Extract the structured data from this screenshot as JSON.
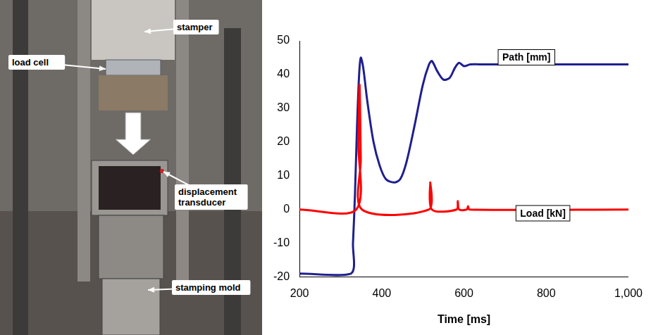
{
  "chart_data": {
    "type": "line",
    "x_label": "Time [ms]",
    "xlim": [
      200,
      1000
    ],
    "xticks": [
      200,
      400,
      600,
      800,
      1000
    ],
    "ylim": [
      -20,
      50
    ],
    "yticks": [
      -20,
      -10,
      0,
      10,
      20,
      30,
      40,
      50
    ],
    "grid": false,
    "series": [
      {
        "name": "Path [mm]",
        "color": "#1f1f8f",
        "x": [
          200,
          325,
          330,
          335,
          340,
          345,
          349,
          355,
          365,
          380,
          395,
          410,
          430,
          445,
          460,
          480,
          500,
          515,
          522,
          535,
          550,
          565,
          578,
          588,
          600,
          615,
          650,
          1000
        ],
        "values": [
          -19,
          -19,
          -10,
          5,
          25,
          40,
          45,
          42,
          32,
          20,
          13,
          9,
          8,
          9,
          14,
          25,
          37,
          43,
          44,
          41,
          38.5,
          39,
          42,
          43.5,
          42.5,
          43,
          43,
          43
        ]
      },
      {
        "name": "Load [kN]",
        "color": "#ff0000",
        "x": [
          200,
          338,
          343,
          346,
          349,
          352,
          515,
          518,
          522,
          582,
          585,
          588,
          607,
          610,
          613,
          1000
        ],
        "values": [
          0,
          0,
          20,
          37,
          15,
          0,
          0,
          8,
          0,
          0,
          2.5,
          0,
          0,
          1,
          0,
          0
        ]
      }
    ]
  },
  "photo": {
    "labels": [
      "stamper",
      "load cell",
      "displacement transducer",
      "stamping mold"
    ]
  }
}
